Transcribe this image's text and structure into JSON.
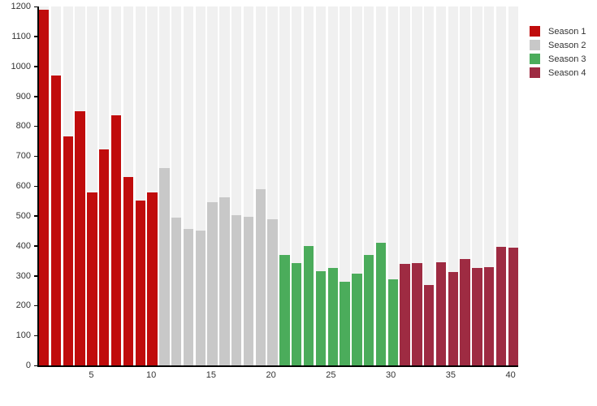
{
  "chart_data": {
    "type": "bar",
    "title": "",
    "xlabel": "",
    "ylabel": "",
    "ylim": [
      0,
      1200
    ],
    "yticks": [
      0,
      100,
      200,
      300,
      400,
      500,
      600,
      700,
      800,
      900,
      1000,
      1100,
      1200
    ],
    "xticks": [
      5,
      10,
      15,
      20,
      25,
      30,
      35,
      40
    ],
    "x_range": [
      1,
      40
    ],
    "grid": "off",
    "background_column_stripes": true,
    "stripe_color": "#f0f0f0",
    "legend_position": "top-right",
    "series": [
      {
        "name": "Season 1",
        "color": "#c00c0c",
        "x_start": 1,
        "values": [
          1190,
          970,
          766,
          849,
          578,
          722,
          835,
          630,
          551,
          578
        ]
      },
      {
        "name": "Season 2",
        "color": "#c8c8c8",
        "x_start": 11,
        "values": [
          661,
          494,
          456,
          452,
          545,
          561,
          501,
          497,
          590,
          488
        ]
      },
      {
        "name": "Season 3",
        "color": "#4bac5b",
        "x_start": 21,
        "values": [
          369,
          341,
          398,
          314,
          325,
          280,
          306,
          370,
          409,
          289
        ]
      },
      {
        "name": "Season 4",
        "color": "#9e2b42",
        "x_start": 31,
        "values": [
          339,
          341,
          270,
          346,
          313,
          355,
          325,
          328,
          396,
          394
        ]
      }
    ]
  },
  "legend": {
    "items": [
      {
        "label": "Season 1",
        "color": "#c00c0c"
      },
      {
        "label": "Season 2",
        "color": "#c8c8c8"
      },
      {
        "label": "Season 3",
        "color": "#4bac5b"
      },
      {
        "label": "Season 4",
        "color": "#9e2b42"
      }
    ]
  },
  "colors": {
    "axis": "#000000",
    "tick_text": "#333333",
    "background": "#ffffff",
    "stripe": "#f0f0f0"
  }
}
